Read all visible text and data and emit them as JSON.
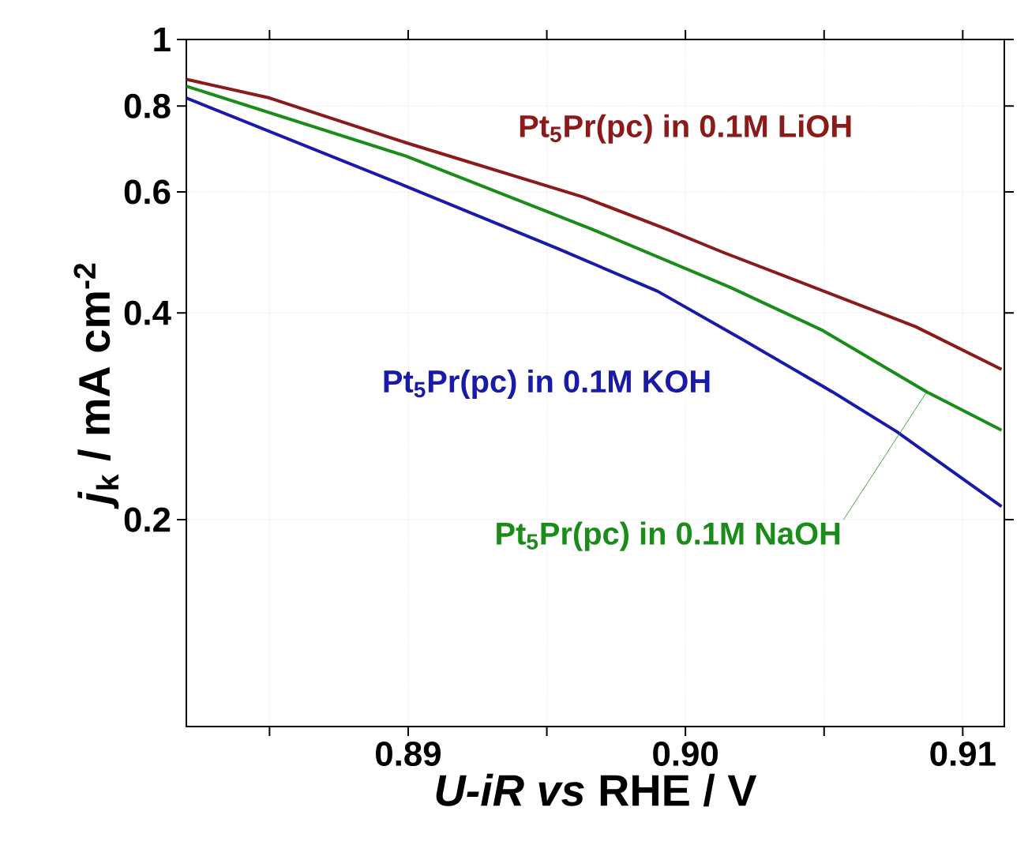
{
  "chart_data": {
    "type": "line",
    "xlabel": "*U-iR vs* RHE / V",
    "ylabel": "*j*$_{k}$ / mA cm$^{-2}$",
    "log": "y",
    "grid": true,
    "xlim": [
      0.882,
      0.9115
    ],
    "ylim": [
      0.1,
      1
    ],
    "xticks": [
      {
        "value": 0.885,
        "label": null
      },
      0.89,
      {
        "value": 0.895,
        "label": null
      },
      {
        "value": 0.9,
        "label": "0.90"
      },
      {
        "value": 0.905,
        "label": null
      },
      0.91
    ],
    "yticks": [
      0.2,
      0.4,
      0.6,
      0.8,
      1
    ],
    "series": [
      {
        "name": "Pt$_{5}$Pr(pc) in 0.1M LiOH",
        "color": "#8b1a1a",
        "x": [
          0.882,
          0.885,
          0.8899,
          0.8963,
          0.8993,
          0.9013,
          0.9083,
          0.9114
        ],
        "values": [
          0.875,
          0.822,
          0.708,
          0.59,
          0.53,
          0.491,
          0.382,
          0.331
        ]
      },
      {
        "name": "Pt$_{5}$Pr(pc) in 0.1M KOH",
        "color": "#1a1aa8",
        "x": [
          0.882,
          0.8899,
          0.8954,
          0.899,
          0.902,
          0.9053,
          0.9076,
          0.9114
        ],
        "values": [
          0.822,
          0.612,
          0.496,
          0.43,
          0.367,
          0.307,
          0.269,
          0.209
        ]
      },
      {
        "name": "Pt$_{5}$Pr(pc) in 0.1M NaOH",
        "color": "#1a8c1a",
        "x": [
          0.882,
          0.8899,
          0.8966,
          0.9016,
          0.9049,
          0.9087,
          0.9114
        ],
        "values": [
          0.855,
          0.677,
          0.53,
          0.436,
          0.378,
          0.307,
          0.27
        ]
      }
    ]
  }
}
